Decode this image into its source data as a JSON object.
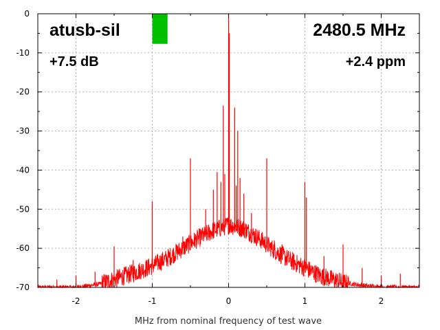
{
  "chart_data": {
    "type": "line",
    "title_left": "atusb-sil",
    "title_right": "2480.5 MHz",
    "gain_label": "+7.5 dB",
    "ppm_label": "+2.4 ppm",
    "xlabel": "MHz from nominal frequency of test wave",
    "ylabel": "",
    "xlim": [
      -2.5,
      2.5
    ],
    "ylim": [
      -70,
      0
    ],
    "xticks": [
      -2,
      -1,
      0,
      1,
      2
    ],
    "xtick_labels": [
      "-2",
      "-1",
      "0",
      "1",
      "2"
    ],
    "yticks": [
      0,
      -10,
      -20,
      -30,
      -40,
      -50,
      -60,
      -70
    ],
    "ytick_labels": [
      "0",
      "-10",
      "-20",
      "-30",
      "-40",
      "-50",
      "-60",
      "-70"
    ],
    "grid": true,
    "series_color": "#ff0000",
    "indicator": {
      "color": "#00c000",
      "x_range": [
        -1.0,
        -0.8
      ],
      "y_range": [
        -7.7,
        0
      ]
    },
    "envelope": [
      {
        "x": -2.5,
        "y": -70
      },
      {
        "x": -2.0,
        "y": -70
      },
      {
        "x": -1.7,
        "y": -69.2
      },
      {
        "x": -1.5,
        "y": -68.0
      },
      {
        "x": -1.2,
        "y": -66.0
      },
      {
        "x": -1.0,
        "y": -64.5
      },
      {
        "x": -0.8,
        "y": -62.5
      },
      {
        "x": -0.6,
        "y": -60.0
      },
      {
        "x": -0.4,
        "y": -57.5
      },
      {
        "x": -0.2,
        "y": -55.5
      },
      {
        "x": 0.0,
        "y": -54.0
      },
      {
        "x": 0.2,
        "y": -55.0
      },
      {
        "x": 0.4,
        "y": -57.5
      },
      {
        "x": 0.6,
        "y": -60.5
      },
      {
        "x": 0.8,
        "y": -63.0
      },
      {
        "x": 1.0,
        "y": -65.0
      },
      {
        "x": 1.2,
        "y": -67.0
      },
      {
        "x": 1.5,
        "y": -68.8
      },
      {
        "x": 1.8,
        "y": -69.6
      },
      {
        "x": 2.1,
        "y": -70
      },
      {
        "x": 2.5,
        "y": -70
      }
    ],
    "spikes": [
      {
        "x": 0.0,
        "y": 0
      },
      {
        "x": 0.01,
        "y": -5
      },
      {
        "x": -0.07,
        "y": -23.5
      },
      {
        "x": 0.08,
        "y": -24
      },
      {
        "x": 0.12,
        "y": -30
      },
      {
        "x": -0.5,
        "y": -37
      },
      {
        "x": 0.5,
        "y": -37
      },
      {
        "x": -0.15,
        "y": -40.5
      },
      {
        "x": -0.05,
        "y": -41
      },
      {
        "x": 0.15,
        "y": -42
      },
      {
        "x": -0.1,
        "y": -43
      },
      {
        "x": 0.1,
        "y": -44
      },
      {
        "x": -0.2,
        "y": -45
      },
      {
        "x": 0.2,
        "y": -46
      },
      {
        "x": -0.3,
        "y": -50
      },
      {
        "x": 0.3,
        "y": -51
      },
      {
        "x": -1.0,
        "y": -48
      },
      {
        "x": 1.0,
        "y": -43
      },
      {
        "x": 1.02,
        "y": -47
      },
      {
        "x": -1.5,
        "y": -59.5
      },
      {
        "x": 1.5,
        "y": -59
      },
      {
        "x": -1.25,
        "y": -63
      },
      {
        "x": 1.25,
        "y": -62
      },
      {
        "x": -0.6,
        "y": -57
      },
      {
        "x": 0.6,
        "y": -58
      },
      {
        "x": -2.0,
        "y": -67
      },
      {
        "x": 2.0,
        "y": -67
      },
      {
        "x": -2.25,
        "y": -68
      },
      {
        "x": 2.25,
        "y": -66.5
      },
      {
        "x": 1.75,
        "y": -65
      },
      {
        "x": -1.75,
        "y": -66
      },
      {
        "x": 0.7,
        "y": -59
      },
      {
        "x": -0.8,
        "y": -63
      }
    ]
  }
}
